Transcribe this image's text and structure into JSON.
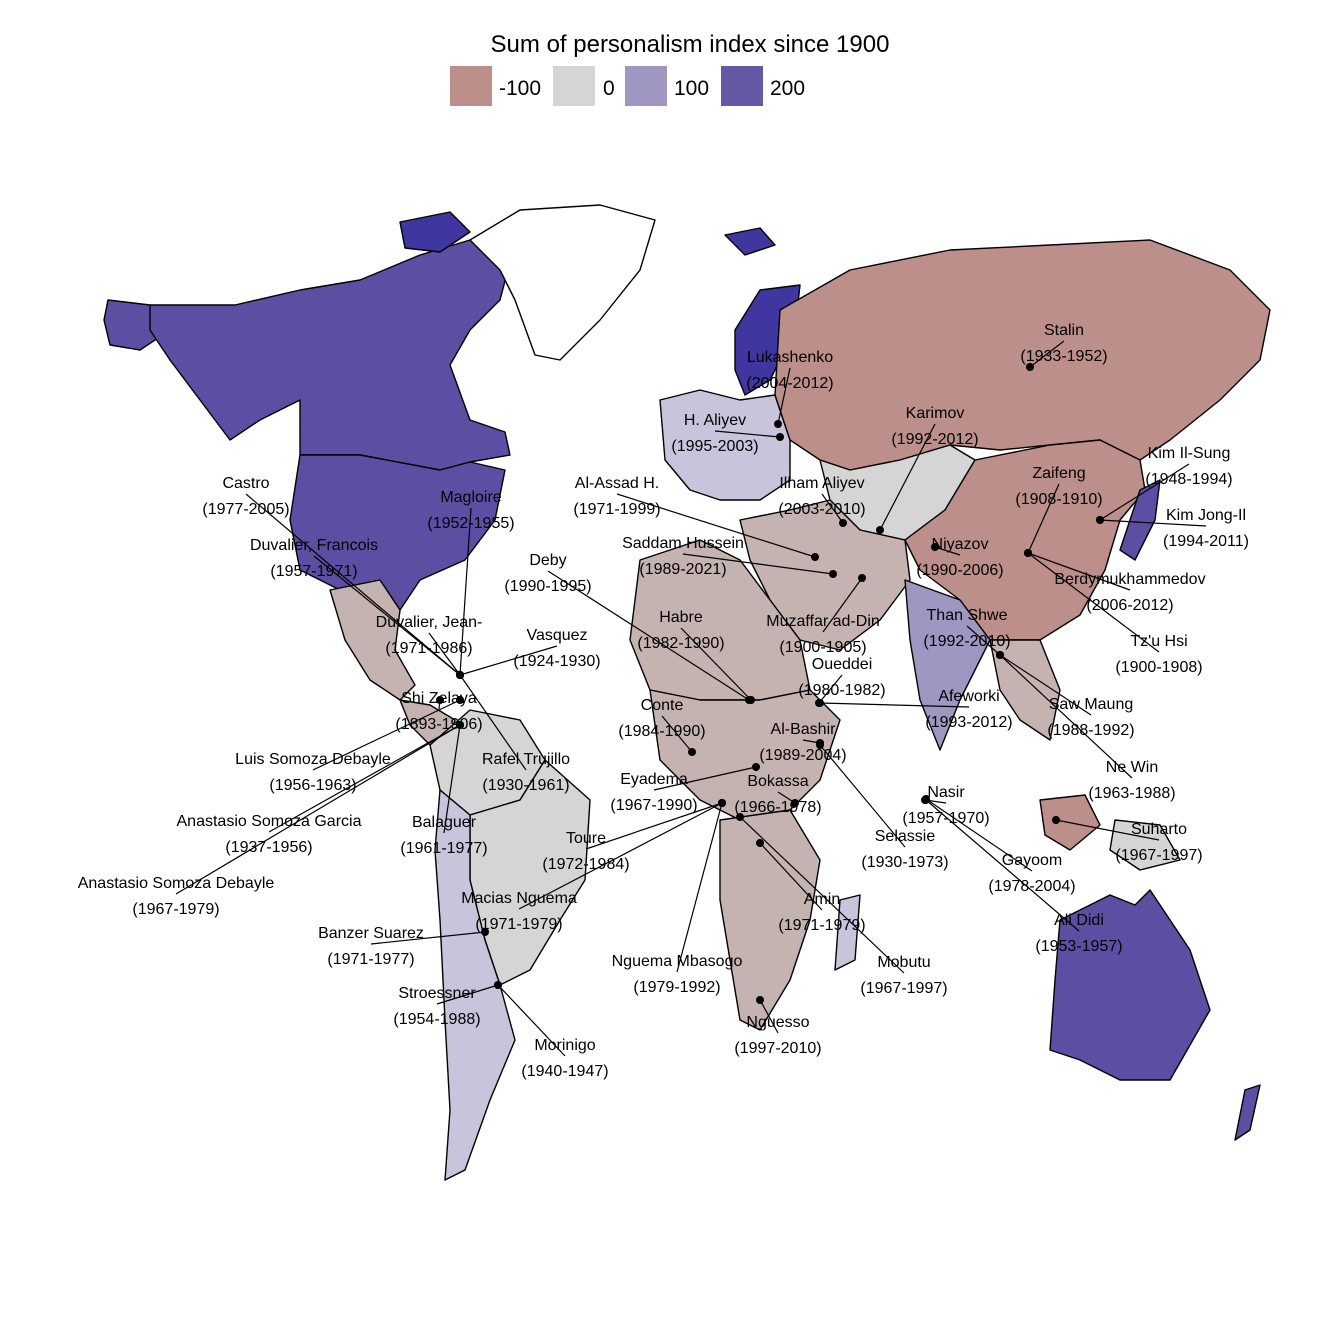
{
  "map": {
    "legend": {
      "title": "Sum of personalism index since 1900",
      "items": [
        {
          "label": "-100",
          "color": "#bc8f8a"
        },
        {
          "label": "0",
          "color": "#d5d5d5"
        },
        {
          "label": "100",
          "color": "#a096c2"
        },
        {
          "label": "200",
          "color": "#6459a6"
        }
      ]
    },
    "colors": {
      "strong": "#5b4ea3",
      "mid": "#a096c2",
      "light": "#c9c3dc",
      "neutral": "#d5d5d5",
      "warm_light": "#c4b3b1",
      "warm": "#bc8f8a",
      "dark": "#3f36a0",
      "none": "#ffffff"
    },
    "regions": [
      {
        "name": "region-canada",
        "fill": "strong"
      },
      {
        "name": "region-usa",
        "fill": "strong"
      },
      {
        "name": "region-alaska",
        "fill": "strong"
      },
      {
        "name": "region-greenland",
        "fill": "none"
      },
      {
        "name": "region-mexico",
        "fill": "warm_light"
      },
      {
        "name": "region-central-america",
        "fill": "warm_light"
      },
      {
        "name": "region-south-america-north",
        "fill": "neutral"
      },
      {
        "name": "region-brazil",
        "fill": "neutral"
      },
      {
        "name": "region-south-america-south",
        "fill": "light"
      },
      {
        "name": "region-scandinavia",
        "fill": "dark"
      },
      {
        "name": "region-europe",
        "fill": "light"
      },
      {
        "name": "region-russia",
        "fill": "warm"
      },
      {
        "name": "region-central-asia",
        "fill": "neutral"
      },
      {
        "name": "region-china",
        "fill": "warm"
      },
      {
        "name": "region-middle-east",
        "fill": "warm_light"
      },
      {
        "name": "region-india",
        "fill": "mid"
      },
      {
        "name": "region-southeast-asia",
        "fill": "warm_light"
      },
      {
        "name": "region-japan",
        "fill": "strong"
      },
      {
        "name": "region-north-africa",
        "fill": "warm_light"
      },
      {
        "name": "region-central-africa",
        "fill": "warm_light"
      },
      {
        "name": "region-southern-africa",
        "fill": "warm_light"
      },
      {
        "name": "region-madagascar",
        "fill": "light"
      },
      {
        "name": "region-australia",
        "fill": "strong"
      },
      {
        "name": "region-new-zealand",
        "fill": "strong"
      },
      {
        "name": "region-indonesia",
        "fill": "warm"
      },
      {
        "name": "region-papua",
        "fill": "neutral"
      },
      {
        "name": "region-iceland",
        "fill": "dark"
      },
      {
        "name": "region-arctic-islands",
        "fill": "dark"
      }
    ],
    "labels": [
      {
        "name": "Stalin",
        "years": "(1933-1952)"
      },
      {
        "name": "Lukashenko",
        "years": "(2004-2012)"
      },
      {
        "name": "H. Aliyev",
        "years": "(1995-2003)"
      },
      {
        "name": "Karimov",
        "years": "(1992-2012)"
      },
      {
        "name": "Kim Il-Sung",
        "years": "(1948-1994)"
      },
      {
        "name": "Zaifeng",
        "years": "(1908-1910)"
      },
      {
        "name": "Ilham Aliyev",
        "years": "(2003-2010)"
      },
      {
        "name": "Al-Assad H.",
        "years": "(1971-1999)"
      },
      {
        "name": "Kim Jong-Il",
        "years": "(1994-2011)"
      },
      {
        "name": "Saddam Hussein",
        "years": "(1989-2021)"
      },
      {
        "name": "Niyazov",
        "years": "(1990-2006)"
      },
      {
        "name": "Berdymukhammedov",
        "years": "(2006-2012)"
      },
      {
        "name": "Deby",
        "years": "(1990-1995)"
      },
      {
        "name": "Muzaffar ad-Din",
        "years": "(1900-1905)"
      },
      {
        "name": "Than Shwe",
        "years": "(1992-2010)"
      },
      {
        "name": "Tz'u Hsi",
        "years": "(1900-1908)"
      },
      {
        "name": "Habre",
        "years": "(1982-1990)"
      },
      {
        "name": "Oueddei",
        "years": "(1980-1982)"
      },
      {
        "name": "Afeworki",
        "years": "(1993-2012)"
      },
      {
        "name": "Saw Maung",
        "years": "(1988-1992)"
      },
      {
        "name": "Conte",
        "years": "(1984-1990)"
      },
      {
        "name": "Al-Bashir",
        "years": "(1989-2004)"
      },
      {
        "name": "Nasir",
        "years": "(1957-1970)"
      },
      {
        "name": "Ne Win",
        "years": "(1963-1988)"
      },
      {
        "name": "Eyadema",
        "years": "(1967-1990)"
      },
      {
        "name": "Bokassa",
        "years": "(1966-1978)"
      },
      {
        "name": "Suharto",
        "years": "(1967-1997)"
      },
      {
        "name": "Toure",
        "years": "(1972-1984)"
      },
      {
        "name": "Selassie",
        "years": "(1930-1973)"
      },
      {
        "name": "Gayoom",
        "years": "(1978-2004)"
      },
      {
        "name": "Macias Nguema",
        "years": "(1971-1979)"
      },
      {
        "name": "Amin",
        "years": "(1971-1979)"
      },
      {
        "name": "Ali Didi",
        "years": "(1953-1957)"
      },
      {
        "name": "Nguema Mbasogo",
        "years": "(1979-1992)"
      },
      {
        "name": "Mobutu",
        "years": "(1967-1997)"
      },
      {
        "name": "Nguesso",
        "years": "(1997-2010)"
      },
      {
        "name": "Castro",
        "years": "(1977-2005)"
      },
      {
        "name": "Magloire",
        "years": "(1952-1955)"
      },
      {
        "name": "Duvalier, Francois",
        "years": "(1957-1971)"
      },
      {
        "name": "Duvalier, Jean-",
        "years": "(1971-1986)"
      },
      {
        "name": "Vasquez",
        "years": "(1924-1930)"
      },
      {
        "name": "Shi Zelaya",
        "years": "(1893-1906)"
      },
      {
        "name": "Rafel Trujillo",
        "years": "(1930-1961)"
      },
      {
        "name": "Luis Somoza Debayle",
        "years": "(1956-1963)"
      },
      {
        "name": "Balaguer",
        "years": "(1961-1977)"
      },
      {
        "name": "Anastasio Somoza Garcia",
        "years": "(1937-1956)"
      },
      {
        "name": "Anastasio Somoza Debayle",
        "years": "(1967-1979)"
      },
      {
        "name": "Banzer Suarez",
        "years": "(1971-1977)"
      },
      {
        "name": "Stroessner",
        "years": "(1954-1988)"
      },
      {
        "name": "Morinigo",
        "years": "(1940-1947)"
      }
    ]
  }
}
